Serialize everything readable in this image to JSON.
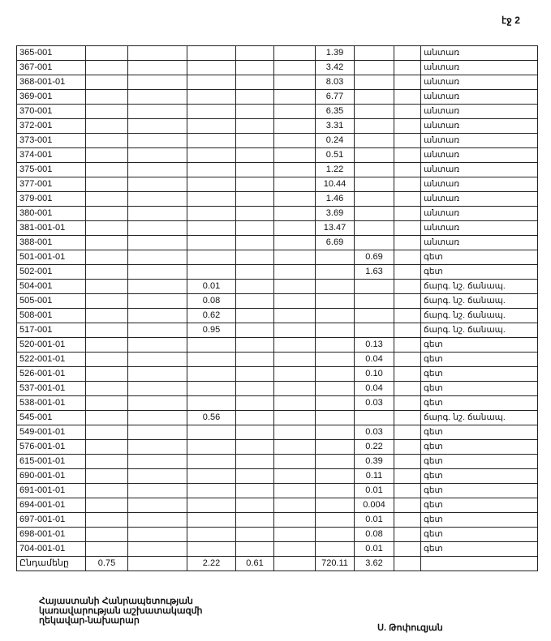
{
  "page_label": "էջ 2",
  "rows": [
    {
      "code": "365-001",
      "c1": "",
      "c2": "",
      "c3": "",
      "c4": "",
      "c5": "",
      "c6": "1.39",
      "c7": "",
      "c8": "",
      "type": "անտառ"
    },
    {
      "code": "367-001",
      "c1": "",
      "c2": "",
      "c3": "",
      "c4": "",
      "c5": "",
      "c6": "3.42",
      "c7": "",
      "c8": "",
      "type": "անտառ"
    },
    {
      "code": "368-001-01",
      "c1": "",
      "c2": "",
      "c3": "",
      "c4": "",
      "c5": "",
      "c6": "8.03",
      "c7": "",
      "c8": "",
      "type": "անտառ"
    },
    {
      "code": "369-001",
      "c1": "",
      "c2": "",
      "c3": "",
      "c4": "",
      "c5": "",
      "c6": "6.77",
      "c7": "",
      "c8": "",
      "type": "անտառ"
    },
    {
      "code": "370-001",
      "c1": "",
      "c2": "",
      "c3": "",
      "c4": "",
      "c5": "",
      "c6": "6.35",
      "c7": "",
      "c8": "",
      "type": "անտառ"
    },
    {
      "code": "372-001",
      "c1": "",
      "c2": "",
      "c3": "",
      "c4": "",
      "c5": "",
      "c6": "3.31",
      "c7": "",
      "c8": "",
      "type": "անտառ"
    },
    {
      "code": "373-001",
      "c1": "",
      "c2": "",
      "c3": "",
      "c4": "",
      "c5": "",
      "c6": "0.24",
      "c7": "",
      "c8": "",
      "type": "անտառ"
    },
    {
      "code": "374-001",
      "c1": "",
      "c2": "",
      "c3": "",
      "c4": "",
      "c5": "",
      "c6": "0.51",
      "c7": "",
      "c8": "",
      "type": "անտառ"
    },
    {
      "code": "375-001",
      "c1": "",
      "c2": "",
      "c3": "",
      "c4": "",
      "c5": "",
      "c6": "1.22",
      "c7": "",
      "c8": "",
      "type": "անտառ"
    },
    {
      "code": "377-001",
      "c1": "",
      "c2": "",
      "c3": "",
      "c4": "",
      "c5": "",
      "c6": "10.44",
      "c7": "",
      "c8": "",
      "type": "անտառ"
    },
    {
      "code": "379-001",
      "c1": "",
      "c2": "",
      "c3": "",
      "c4": "",
      "c5": "",
      "c6": "1.46",
      "c7": "",
      "c8": "",
      "type": "անտառ"
    },
    {
      "code": "380-001",
      "c1": "",
      "c2": "",
      "c3": "",
      "c4": "",
      "c5": "",
      "c6": "3.69",
      "c7": "",
      "c8": "",
      "type": "անտառ"
    },
    {
      "code": "381-001-01",
      "c1": "",
      "c2": "",
      "c3": "",
      "c4": "",
      "c5": "",
      "c6": "13.47",
      "c7": "",
      "c8": "",
      "type": "անտառ"
    },
    {
      "code": "388-001",
      "c1": "",
      "c2": "",
      "c3": "",
      "c4": "",
      "c5": "",
      "c6": "6.69",
      "c7": "",
      "c8": "",
      "type": "անտառ"
    },
    {
      "code": "501-001-01",
      "c1": "",
      "c2": "",
      "c3": "",
      "c4": "",
      "c5": "",
      "c6": "",
      "c7": "0.69",
      "c8": "",
      "type": "գետ"
    },
    {
      "code": "502-001",
      "c1": "",
      "c2": "",
      "c3": "",
      "c4": "",
      "c5": "",
      "c6": "",
      "c7": "1.63",
      "c8": "",
      "type": "գետ"
    },
    {
      "code": "504-001",
      "c1": "",
      "c2": "",
      "c3": "0.01",
      "c4": "",
      "c5": "",
      "c6": "",
      "c7": "",
      "c8": "",
      "type": "ճարգ. նշ. ճանապ."
    },
    {
      "code": "505-001",
      "c1": "",
      "c2": "",
      "c3": "0.08",
      "c4": "",
      "c5": "",
      "c6": "",
      "c7": "",
      "c8": "",
      "type": "ճարգ. նշ. ճանապ."
    },
    {
      "code": "508-001",
      "c1": "",
      "c2": "",
      "c3": "0.62",
      "c4": "",
      "c5": "",
      "c6": "",
      "c7": "",
      "c8": "",
      "type": "ճարգ. նշ. ճանապ."
    },
    {
      "code": "517-001",
      "c1": "",
      "c2": "",
      "c3": "0.95",
      "c4": "",
      "c5": "",
      "c6": "",
      "c7": "",
      "c8": "",
      "type": "ճարգ. նշ. ճանապ."
    },
    {
      "code": "520-001-01",
      "c1": "",
      "c2": "",
      "c3": "",
      "c4": "",
      "c5": "",
      "c6": "",
      "c7": "0.13",
      "c8": "",
      "type": "գետ"
    },
    {
      "code": "522-001-01",
      "c1": "",
      "c2": "",
      "c3": "",
      "c4": "",
      "c5": "",
      "c6": "",
      "c7": "0.04",
      "c8": "",
      "type": "գետ"
    },
    {
      "code": "526-001-01",
      "c1": "",
      "c2": "",
      "c3": "",
      "c4": "",
      "c5": "",
      "c6": "",
      "c7": "0.10",
      "c8": "",
      "type": "գետ"
    },
    {
      "code": "537-001-01",
      "c1": "",
      "c2": "",
      "c3": "",
      "c4": "",
      "c5": "",
      "c6": "",
      "c7": "0.04",
      "c8": "",
      "type": "գետ"
    },
    {
      "code": "538-001-01",
      "c1": "",
      "c2": "",
      "c3": "",
      "c4": "",
      "c5": "",
      "c6": "",
      "c7": "0.03",
      "c8": "",
      "type": "գետ"
    },
    {
      "code": "545-001",
      "c1": "",
      "c2": "",
      "c3": "0.56",
      "c4": "",
      "c5": "",
      "c6": "",
      "c7": "",
      "c8": "",
      "type": "ճարգ. նշ. ճանապ."
    },
    {
      "code": "549-001-01",
      "c1": "",
      "c2": "",
      "c3": "",
      "c4": "",
      "c5": "",
      "c6": "",
      "c7": "0.03",
      "c8": "",
      "type": "գետ"
    },
    {
      "code": "576-001-01",
      "c1": "",
      "c2": "",
      "c3": "",
      "c4": "",
      "c5": "",
      "c6": "",
      "c7": "0.22",
      "c8": "",
      "type": "գետ"
    },
    {
      "code": "615-001-01",
      "c1": "",
      "c2": "",
      "c3": "",
      "c4": "",
      "c5": "",
      "c6": "",
      "c7": "0.39",
      "c8": "",
      "type": "գետ"
    },
    {
      "code": "690-001-01",
      "c1": "",
      "c2": "",
      "c3": "",
      "c4": "",
      "c5": "",
      "c6": "",
      "c7": "0.11",
      "c8": "",
      "type": "գետ"
    },
    {
      "code": "691-001-01",
      "c1": "",
      "c2": "",
      "c3": "",
      "c4": "",
      "c5": "",
      "c6": "",
      "c7": "0.01",
      "c8": "",
      "type": "գետ"
    },
    {
      "code": "694-001-01",
      "c1": "",
      "c2": "",
      "c3": "",
      "c4": "",
      "c5": "",
      "c6": "",
      "c7": "0.004",
      "c8": "",
      "type": "գետ"
    },
    {
      "code": "697-001-01",
      "c1": "",
      "c2": "",
      "c3": "",
      "c4": "",
      "c5": "",
      "c6": "",
      "c7": "0.01",
      "c8": "",
      "type": "գետ"
    },
    {
      "code": "698-001-01",
      "c1": "",
      "c2": "",
      "c3": "",
      "c4": "",
      "c5": "",
      "c6": "",
      "c7": "0.08",
      "c8": "",
      "type": "գետ"
    },
    {
      "code": "704-001-01",
      "c1": "",
      "c2": "",
      "c3": "",
      "c4": "",
      "c5": "",
      "c6": "",
      "c7": "0.01",
      "c8": "",
      "type": "գետ"
    }
  ],
  "total": {
    "code": "Ընդամենը",
    "c1": "0.75",
    "c2": "",
    "c3": "2.22",
    "c4": "0.61",
    "c5": "",
    "c6": "720.11",
    "c7": "3.62",
    "c8": "",
    "type": ""
  },
  "footer": {
    "title_lines": [
      "Հայաստանի Հանրապետության",
      "կառավարության աշխատակազմի",
      "ղեկավար-նախարար"
    ],
    "signer": "Ս. Թոփուզյան"
  }
}
